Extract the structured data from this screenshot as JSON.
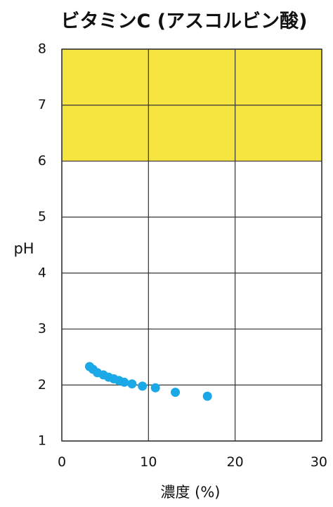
{
  "chart_data": {
    "type": "scatter",
    "title": "ビタミンC (アスコルビン酸)",
    "xlabel": "濃度 (%)",
    "ylabel": "pH",
    "xlim": [
      0,
      30
    ],
    "ylim": [
      1,
      8
    ],
    "x_ticks": [
      0,
      10,
      20,
      30
    ],
    "y_ticks": [
      1,
      2,
      3,
      4,
      5,
      6,
      7,
      8
    ],
    "grid": true,
    "legend": "none",
    "colors": {
      "points": "#1aa8e6",
      "band": "#f6e441",
      "grid": "#333333",
      "text": "#111111"
    },
    "highlight_band": {
      "y_from": 6,
      "y_to": 8
    },
    "series": [
      {
        "x": [
          3.2,
          3.6,
          4.1,
          4.8,
          5.4,
          6.0,
          6.6,
          7.2,
          8.1,
          9.3,
          10.8,
          13.1,
          16.8
        ],
        "y": [
          2.33,
          2.28,
          2.22,
          2.18,
          2.14,
          2.11,
          2.08,
          2.05,
          2.02,
          1.98,
          1.95,
          1.87,
          1.8
        ]
      }
    ]
  }
}
